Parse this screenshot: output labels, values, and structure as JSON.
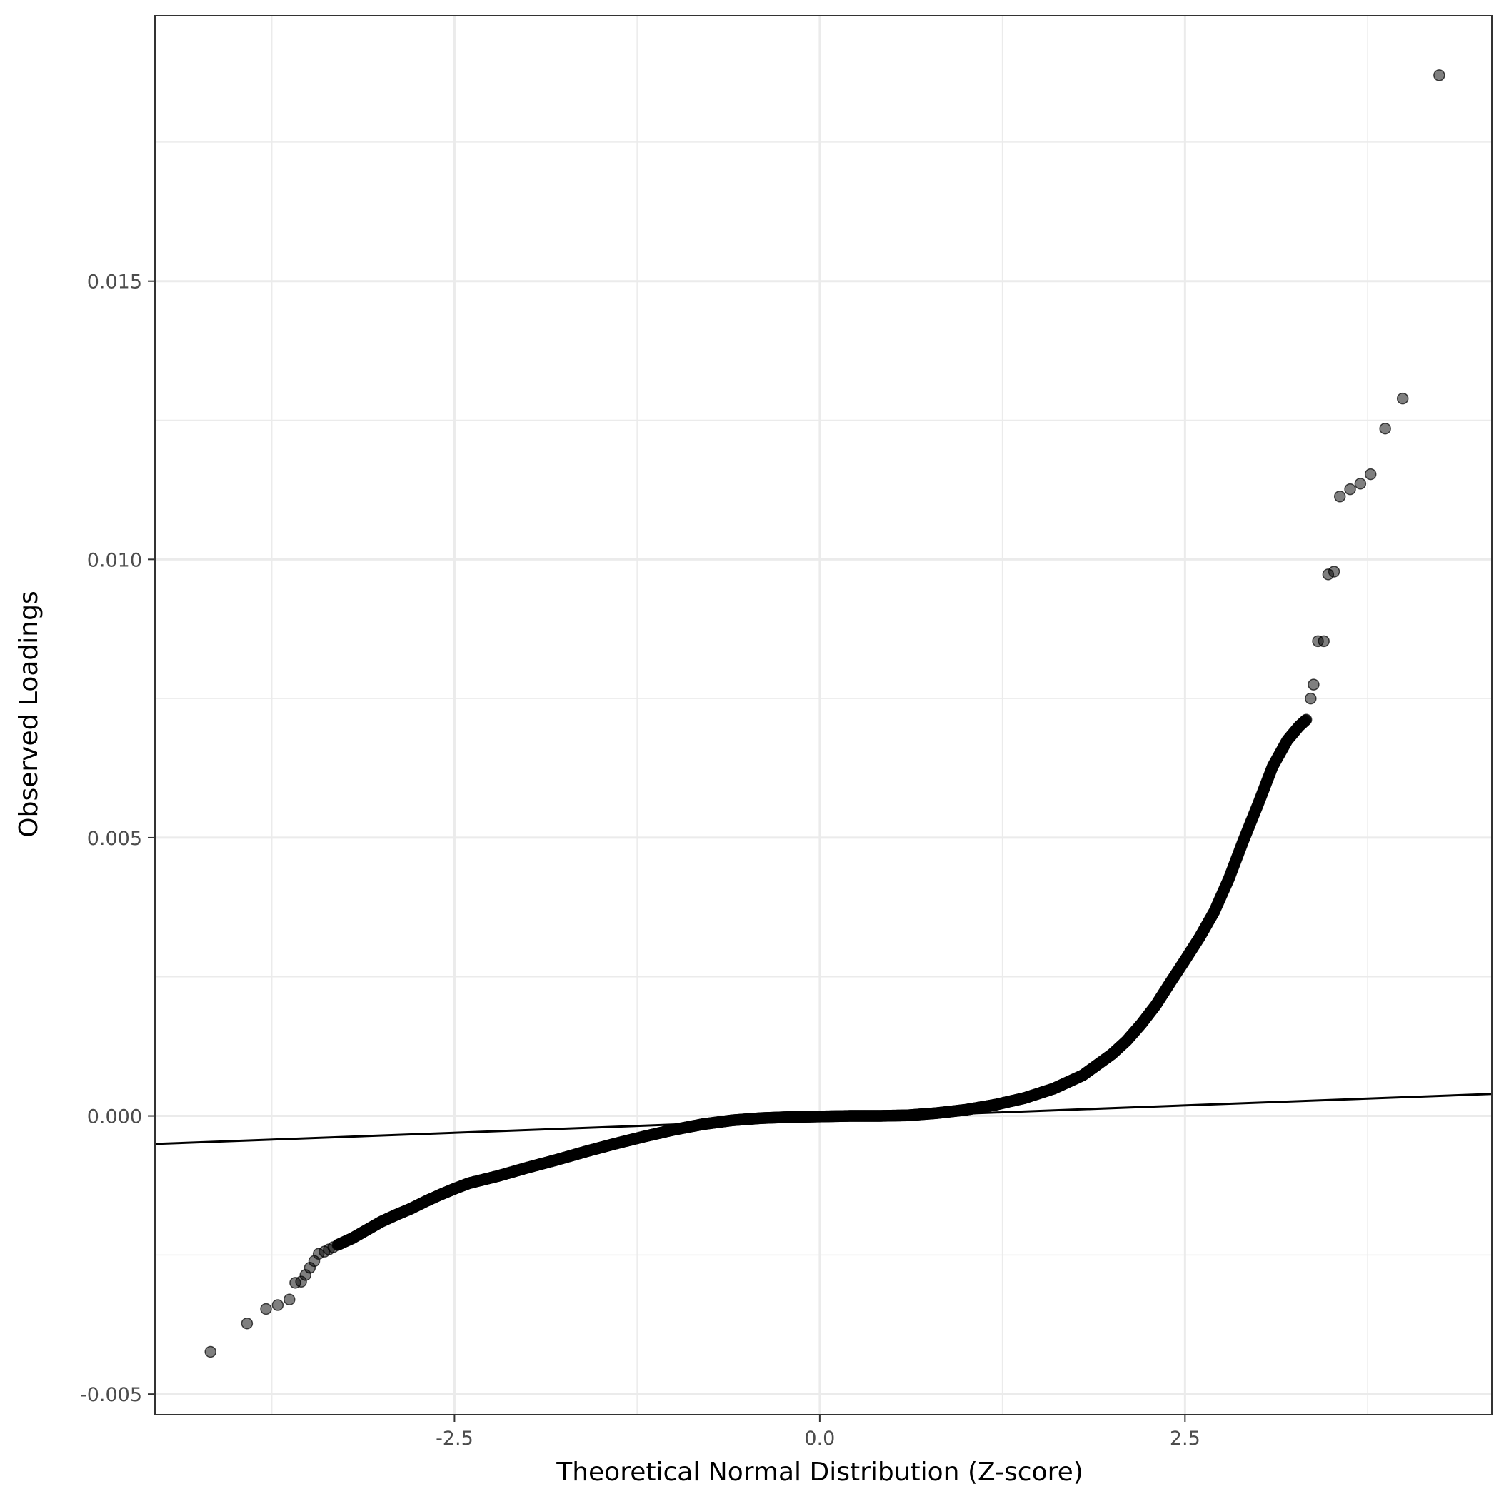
{
  "chart_data": {
    "type": "scatter",
    "xlabel": "Theoretical Normal Distribution (Z-score)",
    "ylabel": "Observed Loadings",
    "xlim": [
      -4.55,
      4.6
    ],
    "ylim": [
      -0.00537,
      0.01977
    ],
    "x_ticks": [
      -2.5,
      0.0,
      2.5
    ],
    "x_tick_labels": [
      "-2.5",
      "0.0",
      "2.5"
    ],
    "y_ticks": [
      -0.005,
      0.0,
      0.005,
      0.01,
      0.015
    ],
    "y_tick_labels": [
      "-0.005",
      "0.000",
      "0.005",
      "0.010",
      "0.015"
    ],
    "grid": true,
    "reference_line": {
      "type": "abline",
      "from": [
        -4.55,
        -0.000505
      ],
      "to": [
        4.6,
        0.000395
      ]
    },
    "point_color": "#000000",
    "point_opacity": 0.5,
    "line_color": "#000000",
    "tails": {
      "low": [
        [
          -4.17,
          -0.00424
        ],
        [
          -3.92,
          -0.00373
        ],
        [
          -3.79,
          -0.00347
        ],
        [
          -3.71,
          -0.0034
        ],
        [
          -3.63,
          -0.0033
        ],
        [
          -3.59,
          -0.003
        ],
        [
          -3.55,
          -0.00298
        ],
        [
          -3.52,
          -0.00286
        ],
        [
          -3.49,
          -0.00273
        ],
        [
          -3.46,
          -0.00261
        ],
        [
          -3.43,
          -0.00248
        ],
        [
          -3.39,
          -0.00244
        ],
        [
          -3.36,
          -0.0024
        ],
        [
          -3.33,
          -0.00236
        ]
      ],
      "high": [
        [
          3.36,
          0.0075
        ],
        [
          3.38,
          0.00775
        ],
        [
          3.41,
          0.00853
        ],
        [
          3.45,
          0.00853
        ],
        [
          3.48,
          0.00973
        ],
        [
          3.52,
          0.00978
        ],
        [
          3.56,
          0.01113
        ],
        [
          3.63,
          0.01126
        ],
        [
          3.7,
          0.01136
        ],
        [
          3.77,
          0.01153
        ],
        [
          3.87,
          0.01235
        ],
        [
          3.99,
          0.01289
        ],
        [
          4.24,
          0.0187
        ]
      ]
    },
    "curve_knots": [
      [
        -3.3,
        -0.00232
      ],
      [
        -3.2,
        -0.0022
      ],
      [
        -3.1,
        -0.00205
      ],
      [
        -3.0,
        -0.0019
      ],
      [
        -2.9,
        -0.00178
      ],
      [
        -2.8,
        -0.00167
      ],
      [
        -2.7,
        -0.00154
      ],
      [
        -2.6,
        -0.00142
      ],
      [
        -2.5,
        -0.00131
      ],
      [
        -2.4,
        -0.00121
      ],
      [
        -2.2,
        -0.00108
      ],
      [
        -2.0,
        -0.00093
      ],
      [
        -1.8,
        -0.00079
      ],
      [
        -1.6,
        -0.00064
      ],
      [
        -1.4,
        -0.0005
      ],
      [
        -1.2,
        -0.00037
      ],
      [
        -1.0,
        -0.00025
      ],
      [
        -0.8,
        -0.00015
      ],
      [
        -0.6,
        -8e-05
      ],
      [
        -0.4,
        -4e-05
      ],
      [
        -0.2,
        -2e-05
      ],
      [
        0.0,
        -1e-05
      ],
      [
        0.2,
        0.0
      ],
      [
        0.4,
        0.0
      ],
      [
        0.6,
        1e-05
      ],
      [
        0.8,
        5e-05
      ],
      [
        1.0,
        0.00011
      ],
      [
        1.2,
        0.0002
      ],
      [
        1.4,
        0.00032
      ],
      [
        1.6,
        0.00049
      ],
      [
        1.8,
        0.00073
      ],
      [
        2.0,
        0.00111
      ],
      [
        2.1,
        0.00135
      ],
      [
        2.2,
        0.00165
      ],
      [
        2.3,
        0.00199
      ],
      [
        2.4,
        0.0024
      ],
      [
        2.5,
        0.0028
      ],
      [
        2.6,
        0.00321
      ],
      [
        2.7,
        0.00367
      ],
      [
        2.8,
        0.00426
      ],
      [
        2.9,
        0.00495
      ],
      [
        3.0,
        0.0056
      ],
      [
        3.1,
        0.00628
      ],
      [
        3.2,
        0.00675
      ],
      [
        3.28,
        0.007
      ],
      [
        3.33,
        0.00712
      ]
    ]
  }
}
